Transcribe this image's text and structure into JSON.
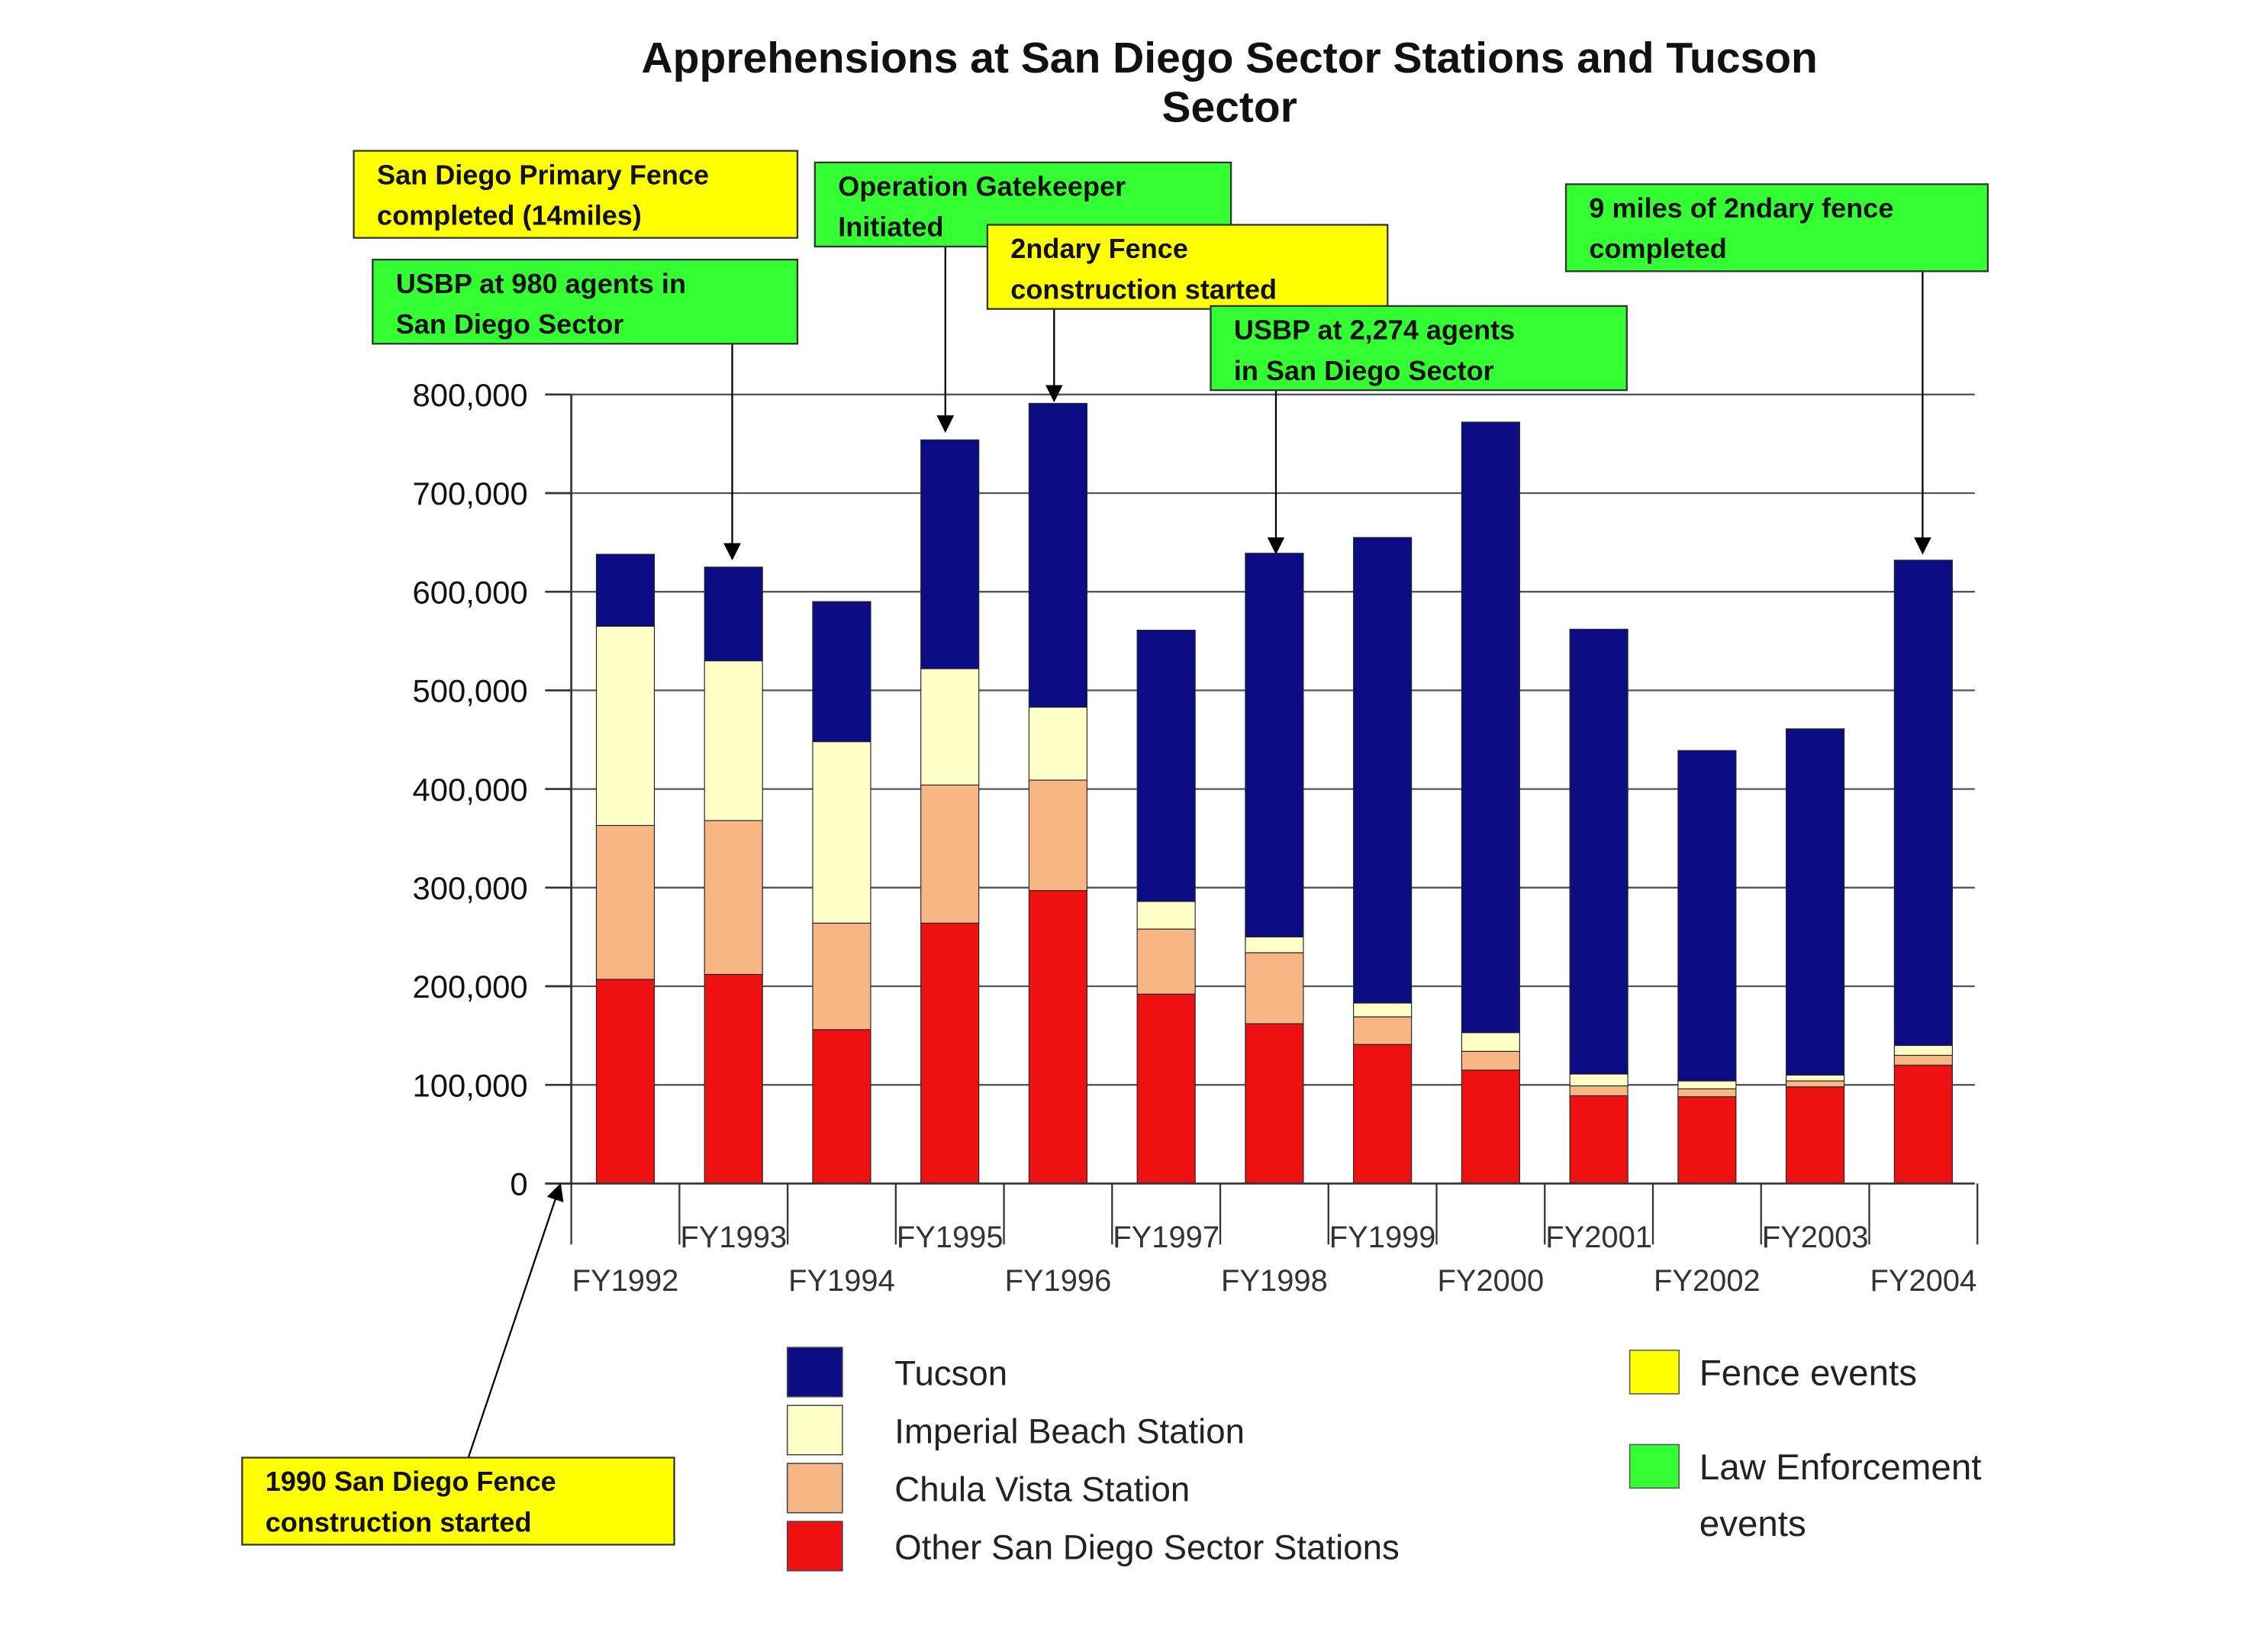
{
  "chart_data": {
    "type": "bar",
    "stacked": true,
    "title": "Apprehensions at San Diego Sector Stations and Tucson Sector",
    "title_lines": [
      "Apprehensions at San Diego Sector Stations and Tucson",
      "Sector"
    ],
    "xlabel": "",
    "ylabel": "",
    "ylim": [
      0,
      800000
    ],
    "yticks": [
      0,
      100000,
      200000,
      300000,
      400000,
      500000,
      600000,
      700000,
      800000
    ],
    "ytick_labels": [
      "0",
      "100,000",
      "200,000",
      "300,000",
      "400,000",
      "500,000",
      "600,000",
      "700,000",
      "800,000"
    ],
    "grid": true,
    "categories": [
      "FY1992",
      "FY1993",
      "FY1994",
      "FY1995",
      "FY1996",
      "FY1997",
      "FY1998",
      "FY1999",
      "FY2000",
      "FY2001",
      "FY2002",
      "FY2003",
      "FY2004"
    ],
    "series": [
      {
        "name": "Other San Diego Sector Stations",
        "color": "#ee1111",
        "values": [
          207000,
          212000,
          156000,
          264000,
          297000,
          192000,
          162000,
          141000,
          115000,
          89000,
          88000,
          98000,
          120000
        ]
      },
      {
        "name": "Chula Vista Station",
        "color": "#f8b684",
        "values": [
          156000,
          156000,
          108000,
          140000,
          112000,
          66000,
          72000,
          28000,
          19000,
          10000,
          8000,
          6000,
          10000
        ]
      },
      {
        "name": "Imperial Beach Station",
        "color": "#ffffc8",
        "values": [
          202000,
          162000,
          184000,
          118000,
          74000,
          28000,
          16000,
          14000,
          19000,
          12000,
          8000,
          6000,
          10000
        ]
      },
      {
        "name": "Tucson",
        "color": "#0c0c84",
        "values": [
          73000,
          95000,
          142000,
          232000,
          308000,
          275000,
          389000,
          472000,
          619000,
          451000,
          335000,
          351000,
          492000
        ]
      }
    ],
    "legend": {
      "placement": "bottom",
      "order": [
        "Tucson",
        "Imperial Beach Station",
        "Chula Vista Station",
        "Other San Diego Sector Stations"
      ]
    },
    "annotations": [
      {
        "id": "sd-primary-fence",
        "kind": "fence",
        "lines": [
          "San Diego Primary Fence",
          "completed (14miles)"
        ],
        "points_to": "FY1993"
      },
      {
        "id": "usbp-980",
        "kind": "law",
        "lines": [
          "USBP at 980  agents in",
          "San Diego Sector"
        ]
      },
      {
        "id": "gatekeeper",
        "kind": "law",
        "lines": [
          "Operation Gatekeeper",
          "Initiated"
        ],
        "points_to": "FY1995"
      },
      {
        "id": "2ndary-started",
        "kind": "fence",
        "lines": [
          "2ndary Fence",
          "construction started"
        ],
        "points_to": "FY1996"
      },
      {
        "id": "usbp-2274",
        "kind": "law",
        "lines": [
          "USBP at 2,274  agents",
          "in San Diego Sector"
        ],
        "points_to": "FY1998"
      },
      {
        "id": "nine-miles",
        "kind": "law",
        "lines": [
          "9 miles of 2ndary fence",
          "completed"
        ],
        "points_to": "FY2004"
      },
      {
        "id": "fence-1990",
        "kind": "fence",
        "lines": [
          "1990 San Diego Fence",
          "construction started"
        ],
        "points_to": "origin"
      }
    ],
    "event_legend": [
      {
        "kind": "fence",
        "lines": [
          "Fence events"
        ]
      },
      {
        "kind": "law",
        "lines": [
          "Law Enforcement",
          "events"
        ]
      }
    ],
    "colors": {
      "fence": "#ffff00",
      "law": "#33ff33",
      "grid": "#555555",
      "axis": "#333333"
    }
  }
}
